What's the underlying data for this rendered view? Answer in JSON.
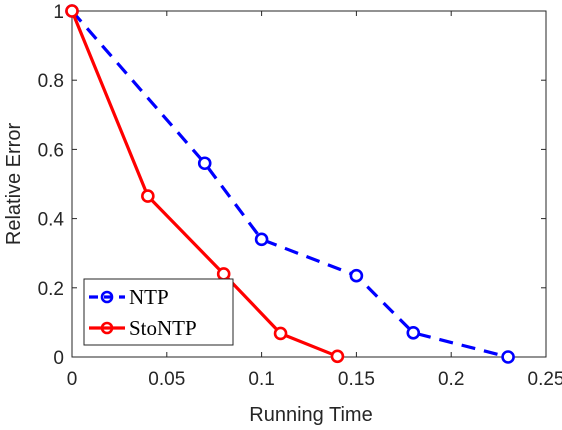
{
  "chart_data": {
    "type": "line",
    "title": "",
    "xlabel": "Running Time",
    "ylabel": "Relative Error",
    "xlim": [
      0,
      0.25
    ],
    "ylim": [
      0,
      1
    ],
    "xticks": [
      "0",
      "0.05",
      "0.1",
      "0.15",
      "0.2",
      "0.25"
    ],
    "xtick_values": [
      0,
      0.05,
      0.1,
      0.15,
      0.2,
      0.25
    ],
    "yticks": [
      "0",
      "0.2",
      "0.4",
      "0.6",
      "0.8",
      "1"
    ],
    "ytick_values": [
      0,
      0.2,
      0.4,
      0.6,
      0.8,
      1
    ],
    "grid": false,
    "legend_position": "bottom-left",
    "series": [
      {
        "name": "NTP",
        "color": "#0000ff",
        "line_style": "dashed",
        "marker": "circle",
        "x": [
          0,
          0.07,
          0.1,
          0.15,
          0.18,
          0.23
        ],
        "y": [
          1,
          0.56,
          0.34,
          0.235,
          0.07,
          0
        ]
      },
      {
        "name": "StoNTP",
        "color": "#ff0000",
        "line_style": "solid",
        "marker": "circle",
        "x": [
          0,
          0.04,
          0.08,
          0.11,
          0.14
        ],
        "y": [
          1,
          0.465,
          0.24,
          0.068,
          0.002
        ]
      }
    ]
  }
}
